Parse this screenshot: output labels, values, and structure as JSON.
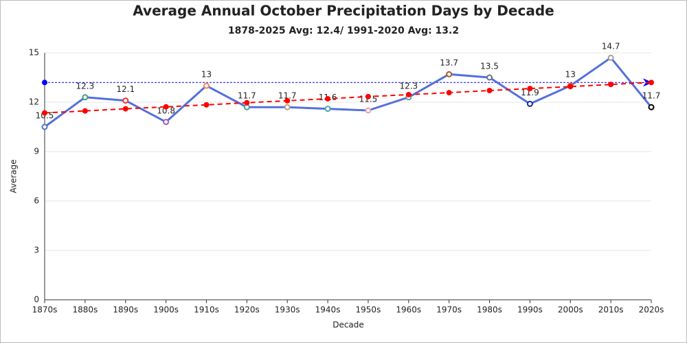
{
  "chart_data": {
    "type": "line",
    "title": "Average Annual October Precipitation Days by Decade",
    "subtitle": "1878-2025 Avg: 12.4/ 1991-2020 Avg: 13.2",
    "x_label": "Decade",
    "y_label": "Average",
    "categories": [
      "1870s",
      "1880s",
      "1890s",
      "1900s",
      "1910s",
      "1920s",
      "1930s",
      "1940s",
      "1950s",
      "1960s",
      "1970s",
      "1980s",
      "1990s",
      "2000s",
      "2010s",
      "2020s"
    ],
    "series": [
      {
        "color": "#5470dc",
        "values": [
          10.5,
          12.3,
          12.1,
          10.8,
          13,
          11.7,
          11.7,
          11.6,
          11.5,
          12.3,
          13.7,
          13.5,
          11.9,
          13,
          14.7,
          11.7
        ],
        "marker_colors": [
          "#5470c6",
          "#3ba272",
          "#ee3333",
          "#9a60b4",
          "#fc8452",
          "#48a0a0",
          "#b8a080",
          "#48a8a8",
          "#e8a0b0",
          "#6a9a9a",
          "#a05a2a",
          "#607090",
          "#1a2a9a",
          "#e07020",
          "#a0a0a0",
          "#000000"
        ],
        "data_labels": true
      },
      {
        "color": "#ff0000",
        "style": "dashed",
        "marker": "dot",
        "values": [
          11.35,
          11.47,
          11.6,
          11.72,
          11.84,
          11.97,
          12.09,
          12.21,
          12.34,
          12.46,
          12.58,
          12.71,
          12.83,
          12.95,
          13.08,
          13.2
        ]
      }
    ],
    "reference_line": {
      "value": 13.2,
      "color": "#0000ff"
    },
    "ylim": [
      0,
      15
    ],
    "yticks": [
      0,
      3,
      6,
      9,
      12,
      15
    ],
    "grid": true
  }
}
